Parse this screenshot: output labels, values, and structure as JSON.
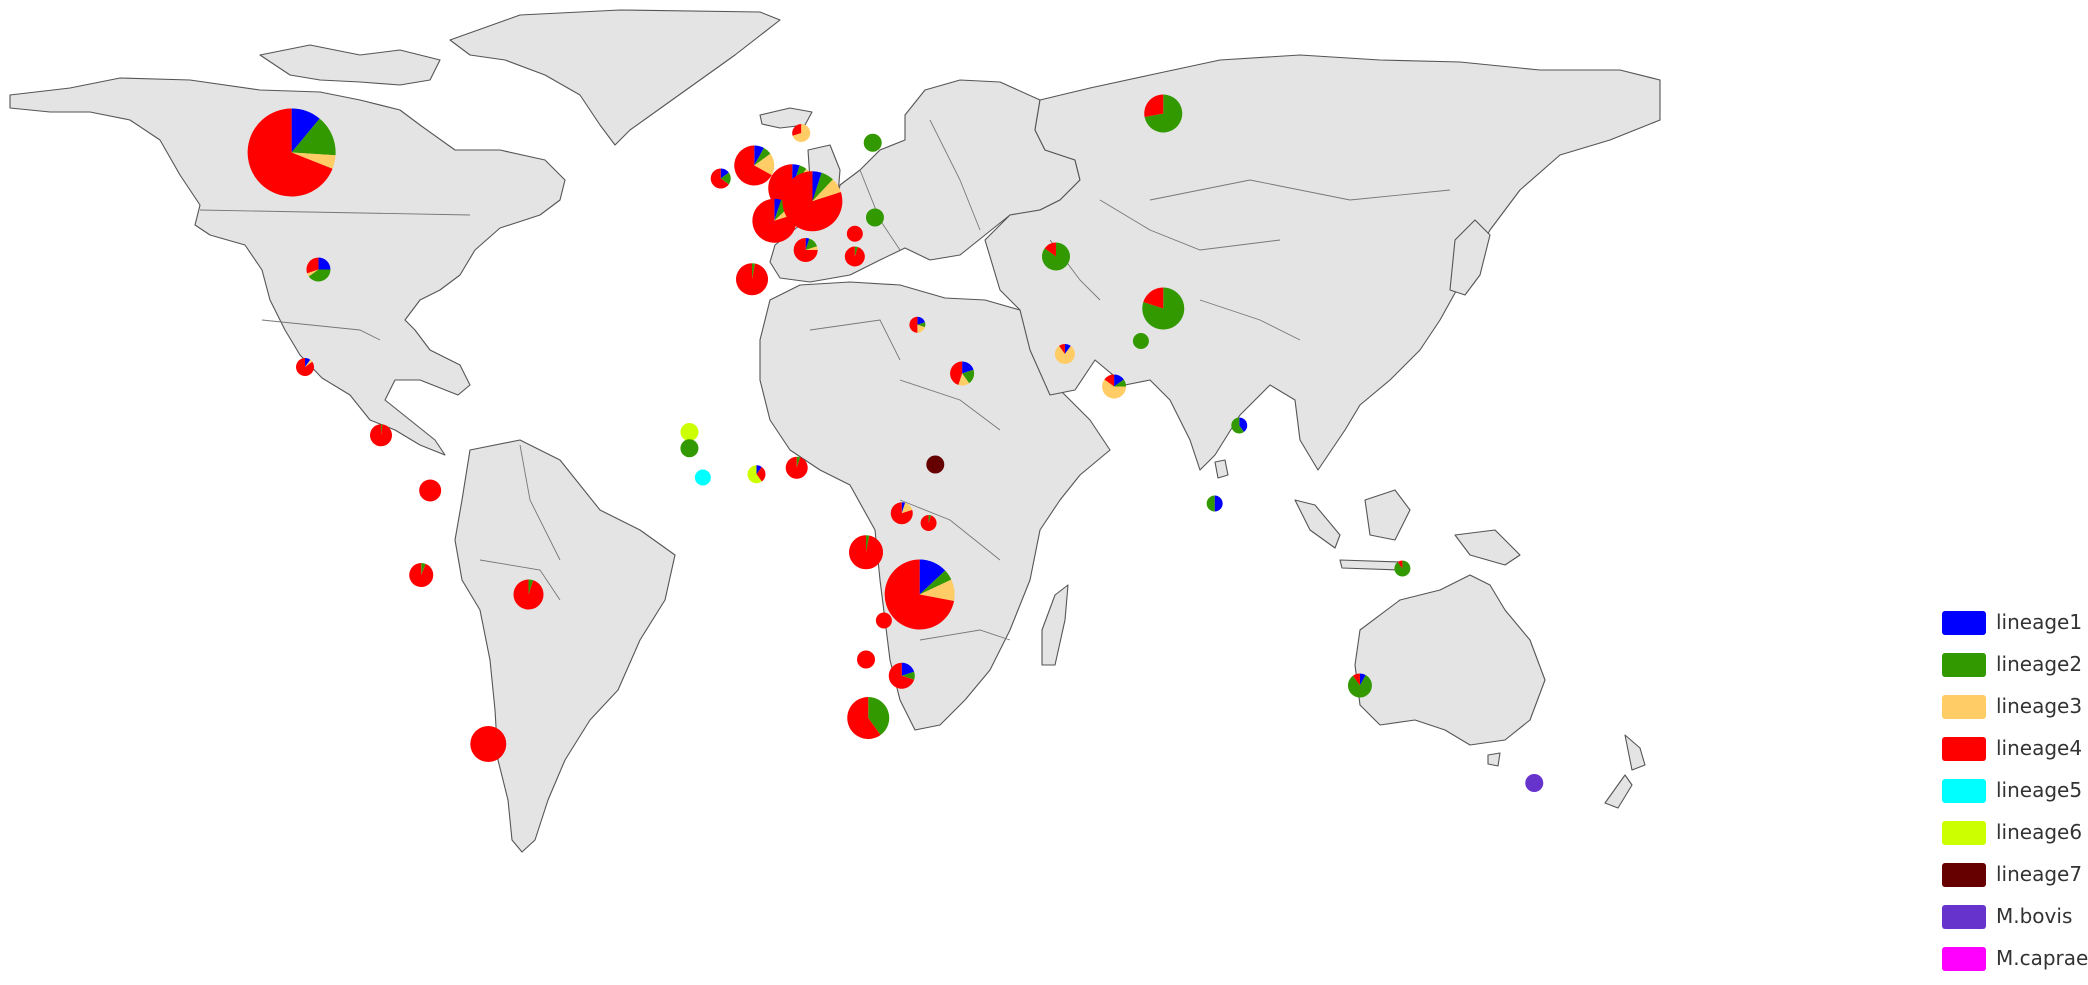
{
  "legend": {
    "items": [
      {
        "label": "lineage1",
        "color": "#0000ff"
      },
      {
        "label": "lineage2",
        "color": "#339900"
      },
      {
        "label": "lineage3",
        "color": "#ffcc66"
      },
      {
        "label": "lineage4",
        "color": "#ff0000"
      },
      {
        "label": "lineage5",
        "color": "#00ffff"
      },
      {
        "label": "lineage6",
        "color": "#ccff00"
      },
      {
        "label": "lineage7",
        "color": "#660000"
      },
      {
        "label": "M.bovis",
        "color": "#6633cc"
      },
      {
        "label": "M.caprae",
        "color": "#ff00ff"
      }
    ]
  },
  "map": {
    "land_color": "#e4e4e5",
    "pie_markers": [
      {
        "location": "Canada",
        "lon": -105,
        "lat": 57,
        "size": 44,
        "fractions": [
          0.11,
          0.15,
          0.05,
          0.69,
          0,
          0,
          0,
          0,
          0
        ]
      },
      {
        "location": "United States",
        "lon": -99,
        "lat": 39,
        "size": 12,
        "fractions": [
          0.25,
          0.4,
          0.05,
          0.3,
          0,
          0,
          0,
          0,
          0
        ]
      },
      {
        "location": "Mexico",
        "lon": -102,
        "lat": 24,
        "size": 9,
        "fractions": [
          0.1,
          0,
          0.05,
          0.85,
          0,
          0,
          0,
          0,
          0
        ]
      },
      {
        "location": "Central America",
        "lon": -85,
        "lat": 13.5,
        "size": 11,
        "fractions": [
          0,
          0.02,
          0,
          0.98,
          0,
          0,
          0,
          0,
          0
        ]
      },
      {
        "location": "Colombia",
        "lon": -74,
        "lat": 5,
        "size": 11,
        "fractions": [
          0,
          0,
          0,
          1,
          0,
          0,
          0,
          0,
          0
        ]
      },
      {
        "location": "Peru",
        "lon": -76,
        "lat": -8,
        "size": 12,
        "fractions": [
          0,
          0.06,
          0,
          0.94,
          0,
          0,
          0,
          0,
          0
        ]
      },
      {
        "location": "Brazil",
        "lon": -52,
        "lat": -11,
        "size": 15,
        "fractions": [
          0,
          0.05,
          0,
          0.95,
          0,
          0,
          0,
          0,
          0
        ]
      },
      {
        "location": "Argentina",
        "lon": -61,
        "lat": -34,
        "size": 18,
        "fractions": [
          0,
          0,
          0,
          1,
          0,
          0,
          0,
          0,
          0
        ]
      },
      {
        "location": "Ireland",
        "lon": -9,
        "lat": 53,
        "size": 10,
        "fractions": [
          0.15,
          0.2,
          0,
          0.65,
          0,
          0,
          0,
          0,
          0
        ]
      },
      {
        "location": "United Kingdom",
        "lon": -1.5,
        "lat": 55,
        "size": 20,
        "fractions": [
          0.08,
          0.07,
          0.18,
          0.67,
          0,
          0,
          0,
          0,
          0
        ]
      },
      {
        "location": "Norway",
        "lon": 9,
        "lat": 60,
        "size": 9,
        "fractions": [
          0,
          0,
          0.7,
          0.3,
          0,
          0,
          0,
          0,
          0
        ]
      },
      {
        "location": "Netherlands",
        "lon": 7,
        "lat": 51.5,
        "size": 24,
        "fractions": [
          0.05,
          0.05,
          0.05,
          0.85,
          0,
          0,
          0,
          0,
          0
        ]
      },
      {
        "location": "France",
        "lon": 3,
        "lat": 46.5,
        "size": 22,
        "fractions": [
          0.05,
          0.08,
          0.07,
          0.8,
          0,
          0,
          0,
          0,
          0
        ]
      },
      {
        "location": "Germany",
        "lon": 11.5,
        "lat": 49.5,
        "size": 30,
        "fractions": [
          0.05,
          0.07,
          0.08,
          0.8,
          0,
          0,
          0,
          0,
          0
        ]
      },
      {
        "location": "Spain",
        "lon": -2,
        "lat": 37.5,
        "size": 16,
        "fractions": [
          0,
          0.03,
          0,
          0.97,
          0,
          0,
          0,
          0,
          0
        ]
      },
      {
        "location": "Italy",
        "lon": 10,
        "lat": 42,
        "size": 12,
        "fractions": [
          0.05,
          0.15,
          0.05,
          0.75,
          0,
          0,
          0,
          0,
          0
        ]
      },
      {
        "location": "Baltics",
        "lon": 25,
        "lat": 58.5,
        "size": 9,
        "fractions": [
          0,
          1,
          0,
          0,
          0,
          0,
          0,
          0,
          0
        ]
      },
      {
        "location": "Romania",
        "lon": 25.5,
        "lat": 47,
        "size": 9,
        "fractions": [
          0,
          1,
          0,
          0,
          0,
          0,
          0,
          0,
          0
        ]
      },
      {
        "location": "Serbia",
        "lon": 21,
        "lat": 44.5,
        "size": 8,
        "fractions": [
          0,
          0,
          0,
          1,
          0,
          0,
          0,
          0,
          0
        ]
      },
      {
        "location": "Bulgaria",
        "lon": 21,
        "lat": 41,
        "size": 10,
        "fractions": [
          0,
          0.05,
          0,
          0.95,
          0,
          0,
          0,
          0,
          0
        ]
      },
      {
        "location": "Israel",
        "lon": 35,
        "lat": 30.5,
        "size": 8,
        "fractions": [
          0.2,
          0.1,
          0.2,
          0.5,
          0,
          0,
          0,
          0,
          0
        ]
      },
      {
        "location": "Saudi Arabia",
        "lon": 45,
        "lat": 23,
        "size": 12,
        "fractions": [
          0.2,
          0.2,
          0.15,
          0.45,
          0,
          0,
          0,
          0,
          0
        ]
      },
      {
        "location": "Russia",
        "lon": 90,
        "lat": 63,
        "size": 19,
        "fractions": [
          0,
          0.72,
          0,
          0.28,
          0,
          0,
          0,
          0,
          0
        ]
      },
      {
        "location": "Central Asia",
        "lon": 66,
        "lat": 41,
        "size": 14,
        "fractions": [
          0,
          0.85,
          0,
          0.15,
          0,
          0,
          0,
          0,
          0
        ]
      },
      {
        "location": "China",
        "lon": 90,
        "lat": 33,
        "size": 21,
        "fractions": [
          0,
          0.8,
          0,
          0.2,
          0,
          0,
          0,
          0,
          0
        ]
      },
      {
        "location": "Pakistan",
        "lon": 68,
        "lat": 26,
        "size": 10,
        "fractions": [
          0.1,
          0,
          0.8,
          0.1,
          0,
          0,
          0,
          0,
          0
        ]
      },
      {
        "location": "Nepal",
        "lon": 85,
        "lat": 28,
        "size": 8,
        "fractions": [
          0,
          1,
          0,
          0,
          0,
          0,
          0,
          0,
          0
        ]
      },
      {
        "location": "India",
        "lon": 79,
        "lat": 21,
        "size": 12,
        "fractions": [
          0.15,
          0.1,
          0.6,
          0.15,
          0,
          0,
          0,
          0,
          0
        ]
      },
      {
        "location": "Vietnam",
        "lon": 107,
        "lat": 15,
        "size": 8,
        "fractions": [
          0.4,
          0.6,
          0,
          0,
          0,
          0,
          0,
          0,
          0
        ]
      },
      {
        "location": "Malaysia",
        "lon": 101.5,
        "lat": 3,
        "size": 8,
        "fractions": [
          0.5,
          0.5,
          0,
          0,
          0,
          0,
          0,
          0,
          0
        ]
      },
      {
        "location": "Papua New Guinea",
        "lon": 143.5,
        "lat": -7,
        "size": 8,
        "fractions": [
          0,
          0.9,
          0,
          0.1,
          0,
          0,
          0,
          0,
          0
        ]
      },
      {
        "location": "Australia",
        "lon": 134,
        "lat": -25,
        "size": 12,
        "fractions": [
          0.08,
          0.82,
          0,
          0.1,
          0,
          0,
          0,
          0,
          0
        ]
      },
      {
        "location": "New Zealand",
        "lon": 173,
        "lat": -40,
        "size": 9,
        "fractions": [
          0,
          0,
          0,
          0,
          0,
          0,
          0,
          1,
          0
        ]
      },
      {
        "location": "Gambia",
        "lon": -16,
        "lat": 14,
        "size": 9,
        "fractions": [
          0,
          0,
          0,
          0,
          0,
          1,
          0,
          0,
          0
        ]
      },
      {
        "location": "Guinea-Bissau",
        "lon": -16,
        "lat": 11.5,
        "size": 9,
        "fractions": [
          0,
          1,
          0,
          0,
          0,
          0,
          0,
          0,
          0
        ]
      },
      {
        "location": "Sierra Leone",
        "lon": -13,
        "lat": 7,
        "size": 8,
        "fractions": [
          0,
          0,
          0,
          0,
          1,
          0,
          0,
          0,
          0
        ]
      },
      {
        "location": "Ghana",
        "lon": -1,
        "lat": 7.5,
        "size": 9,
        "fractions": [
          0.1,
          0,
          0,
          0.3,
          0,
          0.6,
          0,
          0,
          0
        ]
      },
      {
        "location": "Nigeria",
        "lon": 8,
        "lat": 8.5,
        "size": 11,
        "fractions": [
          0,
          0.05,
          0,
          0.95,
          0,
          0,
          0,
          0,
          0
        ]
      },
      {
        "location": "Ethiopia",
        "lon": 39,
        "lat": 9,
        "size": 9,
        "fractions": [
          0,
          0,
          0,
          0,
          0,
          0,
          1,
          0,
          0
        ]
      },
      {
        "location": "Uganda",
        "lon": 31.5,
        "lat": 1.5,
        "size": 11,
        "fractions": [
          0.05,
          0,
          0.15,
          0.8,
          0,
          0,
          0,
          0,
          0
        ]
      },
      {
        "location": "Kenya",
        "lon": 37.5,
        "lat": 0,
        "size": 8,
        "fractions": [
          0,
          0.05,
          0,
          0.95,
          0,
          0,
          0,
          0,
          0
        ]
      },
      {
        "location": "DR Congo",
        "lon": 23.5,
        "lat": -4.5,
        "size": 17,
        "fractions": [
          0,
          0.03,
          0,
          0.97,
          0,
          0,
          0,
          0,
          0
        ]
      },
      {
        "location": "Malawi/Mozambique",
        "lon": 35.5,
        "lat": -11,
        "size": 35,
        "fractions": [
          0.13,
          0.05,
          0.1,
          0.72,
          0,
          0,
          0,
          0,
          0
        ]
      },
      {
        "location": "Zambia",
        "lon": 27.5,
        "lat": -15,
        "size": 8,
        "fractions": [
          0,
          0,
          0,
          1,
          0,
          0,
          0,
          0,
          0
        ]
      },
      {
        "location": "Zimbabwe",
        "lon": 23.5,
        "lat": -21,
        "size": 9,
        "fractions": [
          0,
          0,
          0,
          1,
          0,
          0,
          0,
          0,
          0
        ]
      },
      {
        "location": "Mozambique",
        "lon": 31.5,
        "lat": -23.5,
        "size": 13,
        "fractions": [
          0.2,
          0.1,
          0,
          0.7,
          0,
          0,
          0,
          0,
          0
        ]
      },
      {
        "location": "South Africa",
        "lon": 24,
        "lat": -30,
        "size": 21,
        "fractions": [
          0,
          0.4,
          0,
          0.6,
          0,
          0,
          0,
          0,
          0
        ]
      }
    ]
  }
}
